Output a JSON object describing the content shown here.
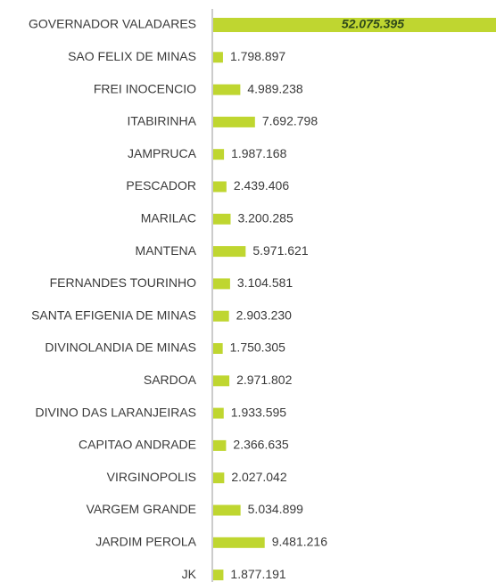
{
  "chart_data": {
    "type": "bar",
    "orientation": "horizontal",
    "color": "#bfd630",
    "categories": [
      "GOVERNADOR VALADARES",
      "SAO FELIX DE MINAS",
      "FREI INOCENCIO",
      "ITABIRINHA",
      "JAMPRUCA",
      "PESCADOR",
      "MARILAC",
      "MANTENA",
      "FERNANDES TOURINHO",
      "SANTA EFIGENIA DE MINAS",
      "DIVINOLANDIA DE MINAS",
      "SARDOA",
      "DIVINO DAS LARANJEIRAS",
      "CAPITAO ANDRADE",
      "VIRGINOPOLIS",
      "VARGEM GRANDE",
      "JARDIM PEROLA",
      "JK"
    ],
    "values": [
      52075395,
      1798897,
      4989238,
      7692798,
      1987168,
      2439406,
      3200285,
      5971621,
      3104581,
      2903230,
      1750305,
      2971802,
      1933595,
      2366635,
      2027042,
      5034899,
      9481216,
      1877191
    ],
    "value_labels": [
      "52.075.395",
      "1.798.897",
      "4.989.238",
      "7.692.798",
      "1.987.168",
      "2.439.406",
      "3.200.285",
      "5.971.621",
      "3.104.581",
      "2.903.230",
      "1.750.305",
      "2.971.802",
      "1.933.595",
      "2.366.635",
      "2.027.042",
      "5.034.899",
      "9.481.216",
      "1.877.191"
    ]
  }
}
